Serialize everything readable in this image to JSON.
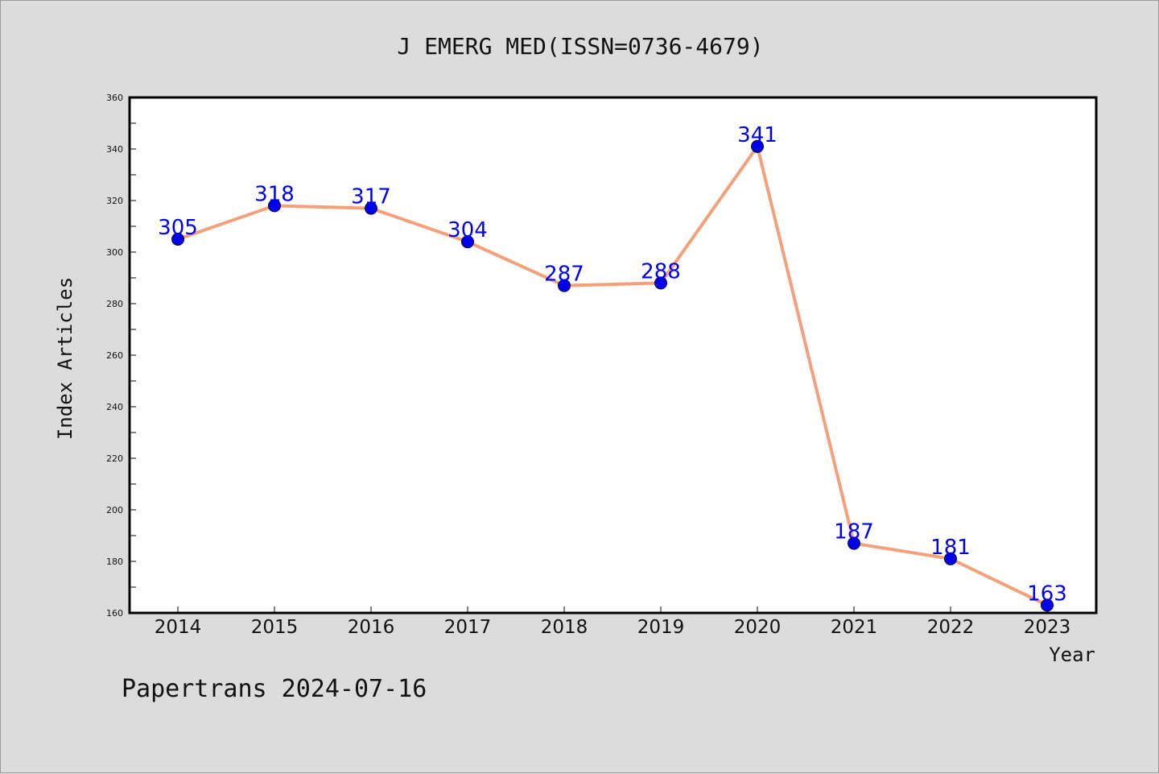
{
  "chart_data": {
    "type": "line",
    "title": "J EMERG MED(ISSN=0736-4679)",
    "xlabel": "Year",
    "ylabel": "Index Articles",
    "categories": [
      "2014",
      "2015",
      "2016",
      "2017",
      "2018",
      "2019",
      "2020",
      "2021",
      "2022",
      "2023"
    ],
    "series": [
      {
        "values": [
          305,
          318,
          317,
          304,
          287,
          288,
          341,
          187,
          181,
          163
        ]
      }
    ],
    "data_labels": [
      "305",
      "318",
      "317",
      "304",
      "287",
      "288",
      "341",
      "187",
      "181",
      "163"
    ],
    "ylim": [
      160,
      360
    ],
    "yticks": [
      160,
      180,
      200,
      220,
      240,
      260,
      280,
      300,
      320,
      340,
      360
    ],
    "grid": false,
    "line_color": "#f4a07a",
    "marker_color": "#0000ee",
    "label_color": "#0000ee"
  },
  "footer": {
    "watermark": "Papertrans 2024-07-16"
  }
}
